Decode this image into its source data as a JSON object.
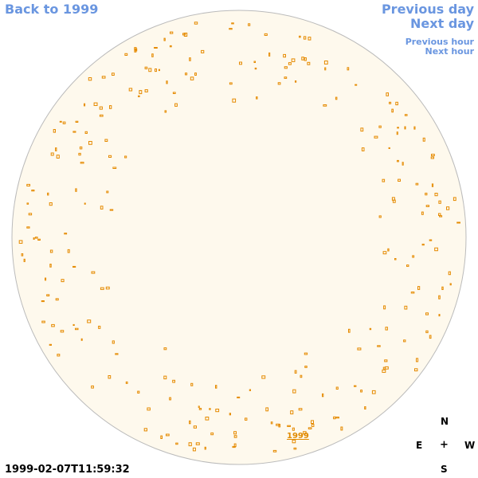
{
  "nav": {
    "back": "Back to 1999",
    "previous_day": "Previous day",
    "next_day": "Next day",
    "previous_hour": "Previous hour",
    "next_hour": "Next hour"
  },
  "image": {
    "label": "1999"
  },
  "timestamp": "1999-02-07T11:59:32",
  "compass": {
    "north": "N",
    "east": "E",
    "center": "+",
    "west": "W",
    "south": "S"
  }
}
